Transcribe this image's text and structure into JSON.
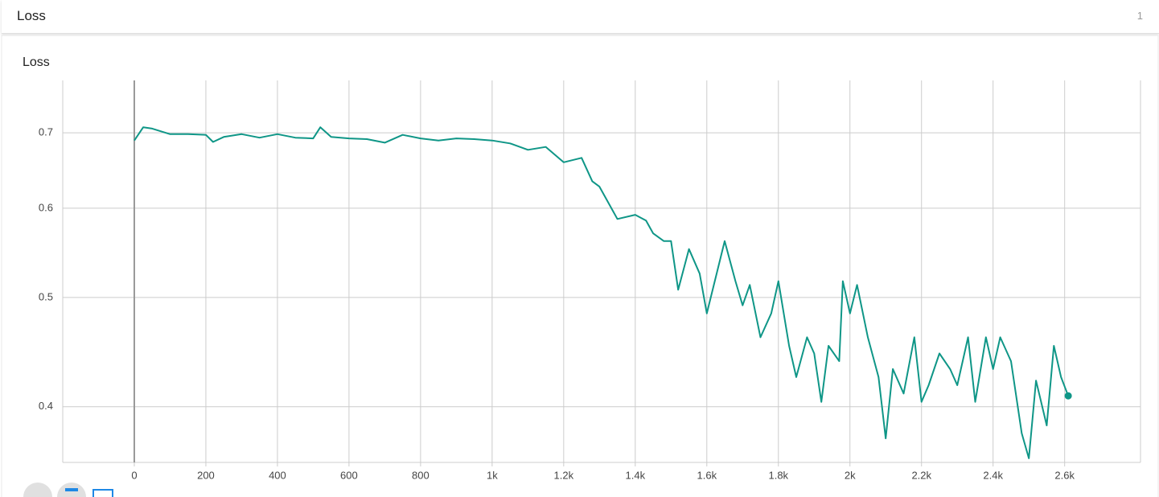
{
  "header": {
    "title": "Loss",
    "count": "1"
  },
  "chart_data": {
    "type": "line",
    "title": "Loss",
    "log_y": true,
    "grid": true,
    "xlim": [
      -200,
      2812
    ],
    "ylim": [
      0.357,
      0.779
    ],
    "xticks": [
      0,
      200,
      400,
      600,
      800,
      {
        "value": 1000,
        "label": "1k"
      },
      {
        "value": 1200,
        "label": "1.2k"
      },
      {
        "value": 1400,
        "label": "1.4k"
      },
      {
        "value": 1600,
        "label": "1.6k"
      },
      {
        "value": 1800,
        "label": "1.8k"
      },
      {
        "value": 2000,
        "label": "2k"
      },
      {
        "value": 2200,
        "label": "2.2k"
      },
      {
        "value": 2400,
        "label": "2.4k"
      },
      {
        "value": 2600,
        "label": "2.6k"
      }
    ],
    "yticks": [
      0.4,
      0.5,
      0.6,
      0.7
    ],
    "x": [
      0,
      25,
      50,
      100,
      150,
      200,
      220,
      250,
      300,
      350,
      400,
      450,
      500,
      520,
      550,
      600,
      650,
      700,
      750,
      800,
      850,
      900,
      950,
      1000,
      1050,
      1100,
      1150,
      1200,
      1250,
      1280,
      1300,
      1350,
      1400,
      1430,
      1450,
      1480,
      1500,
      1520,
      1550,
      1580,
      1600,
      1650,
      1680,
      1700,
      1720,
      1750,
      1780,
      1800,
      1830,
      1850,
      1880,
      1900,
      1920,
      1940,
      1970,
      1980,
      2000,
      2020,
      2050,
      2080,
      2100,
      2120,
      2150,
      2180,
      2200,
      2220,
      2250,
      2280,
      2300,
      2330,
      2350,
      2380,
      2400,
      2420,
      2450,
      2480,
      2500,
      2520,
      2550,
      2570,
      2590,
      2610
    ],
    "series": [
      {
        "color": "#0f9687",
        "values": [
          0.689,
          0.708,
          0.706,
          0.698,
          0.698,
          0.697,
          0.687,
          0.694,
          0.698,
          0.693,
          0.698,
          0.693,
          0.692,
          0.708,
          0.694,
          0.692,
          0.691,
          0.686,
          0.697,
          0.692,
          0.689,
          0.692,
          0.691,
          0.689,
          0.685,
          0.676,
          0.68,
          0.659,
          0.665,
          0.634,
          0.627,
          0.587,
          0.592,
          0.585,
          0.57,
          0.561,
          0.561,
          0.508,
          0.552,
          0.525,
          0.484,
          0.561,
          0.517,
          0.492,
          0.513,
          0.461,
          0.484,
          0.517,
          0.453,
          0.425,
          0.461,
          0.446,
          0.404,
          0.453,
          0.439,
          0.517,
          0.484,
          0.513,
          0.461,
          0.425,
          0.375,
          0.432,
          0.411,
          0.461,
          0.404,
          0.418,
          0.446,
          0.432,
          0.418,
          0.461,
          0.404,
          0.461,
          0.432,
          0.461,
          0.439,
          0.379,
          0.36,
          0.422,
          0.385,
          0.453,
          0.425,
          0.409
        ]
      }
    ]
  }
}
